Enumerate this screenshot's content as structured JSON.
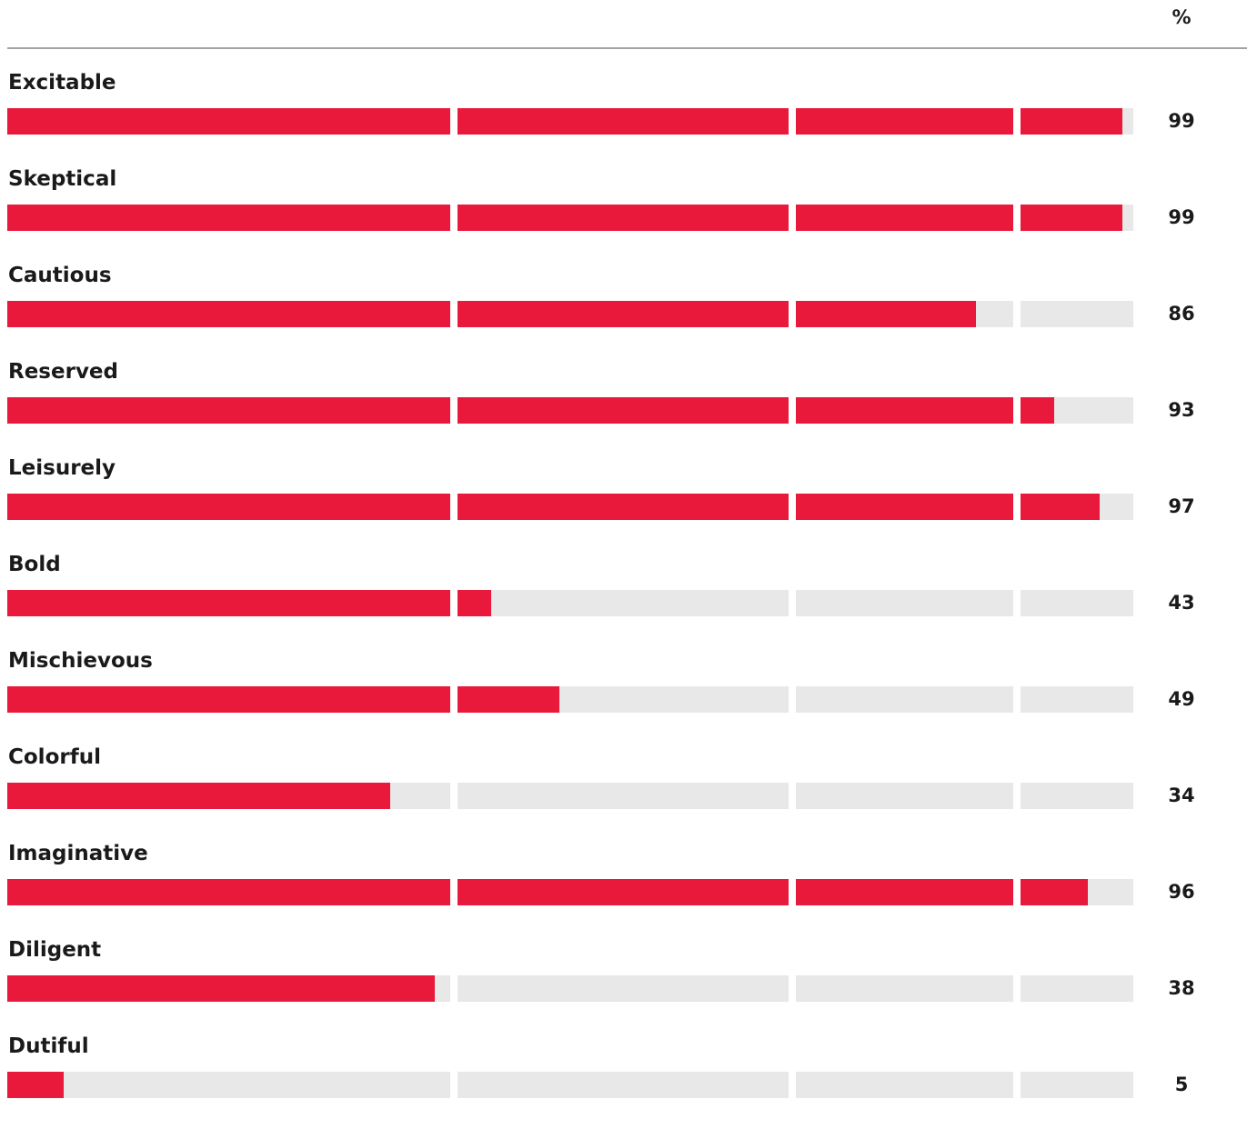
{
  "header": {
    "unit_label": "%"
  },
  "colors": {
    "fill": "#e8193a",
    "track": "#e8e8e8",
    "rule": "#a3a3a3"
  },
  "chart_data": {
    "type": "bar",
    "orientation": "horizontal",
    "categories": [
      "Excitable",
      "Skeptical",
      "Cautious",
      "Reserved",
      "Leisurely",
      "Bold",
      "Mischievous",
      "Colorful",
      "Imaginative",
      "Diligent",
      "Dutiful"
    ],
    "values": [
      99,
      99,
      86,
      93,
      97,
      43,
      49,
      34,
      96,
      38,
      5
    ],
    "value_labels": [
      "99",
      "99",
      "86",
      "93",
      "97",
      "43",
      "49",
      "34",
      "96",
      "38",
      "5"
    ],
    "xlim": [
      0,
      100
    ],
    "segment_breaks": [
      40,
      70,
      90
    ],
    "unit": "%",
    "grid": false,
    "legend": "none"
  }
}
